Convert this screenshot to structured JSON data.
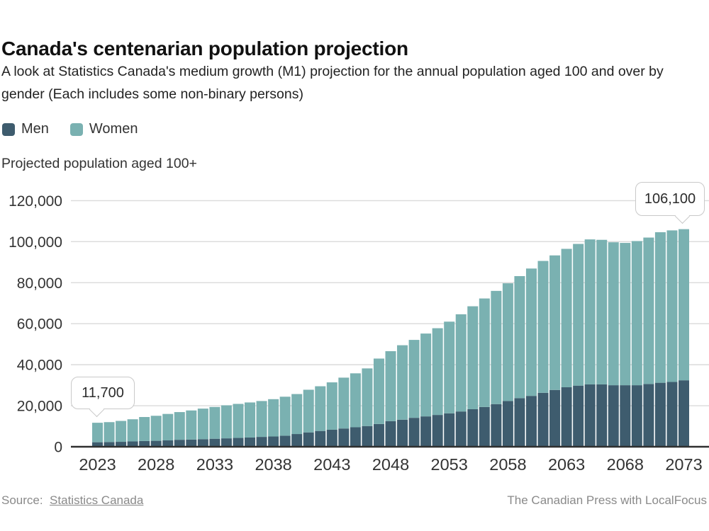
{
  "header": {
    "title": "Canada's centenarian population projection",
    "subtitle": "A look at Statistics Canada's medium growth (M1) projection for the annual population aged 100 and over by gender (Each includes some non-binary persons)"
  },
  "legend": [
    {
      "label": "Men",
      "color": "#3e5c6e"
    },
    {
      "label": "Women",
      "color": "#7ab1b1"
    }
  ],
  "axis_title": "Projected population aged 100+",
  "annotations": [
    {
      "text": "11,700",
      "year": 2023
    },
    {
      "text": "106,100",
      "year": 2073
    }
  ],
  "footer": {
    "source_prefix": "Source:",
    "source_link": "Statistics Canada",
    "credit": "The Canadian Press with LocalFocus"
  },
  "chart_data": {
    "type": "bar",
    "stacked": true,
    "title": "Canada's centenarian population projection",
    "ylabel": "Projected population aged 100+",
    "ylim": [
      0,
      120000
    ],
    "yticks": [
      0,
      20000,
      40000,
      60000,
      80000,
      100000,
      120000
    ],
    "xticks": [
      2023,
      2028,
      2033,
      2038,
      2043,
      2048,
      2053,
      2058,
      2063,
      2068,
      2073
    ],
    "grid": true,
    "legend_position": "top",
    "x": [
      2023,
      2024,
      2025,
      2026,
      2027,
      2028,
      2029,
      2030,
      2031,
      2032,
      2033,
      2034,
      2035,
      2036,
      2037,
      2038,
      2039,
      2040,
      2041,
      2042,
      2043,
      2044,
      2045,
      2046,
      2047,
      2048,
      2049,
      2050,
      2051,
      2052,
      2053,
      2054,
      2055,
      2056,
      2057,
      2058,
      2059,
      2060,
      2061,
      2062,
      2063,
      2064,
      2065,
      2066,
      2067,
      2068,
      2069,
      2070,
      2071,
      2072,
      2073
    ],
    "series": [
      {
        "name": "Men",
        "color": "#3e5c6e",
        "values": [
          2200,
          2300,
          2400,
          2600,
          2800,
          2900,
          3100,
          3400,
          3500,
          3700,
          3900,
          4100,
          4300,
          4500,
          4800,
          5000,
          5400,
          6200,
          7000,
          7700,
          8300,
          8900,
          9500,
          10100,
          11100,
          12500,
          13200,
          14100,
          14800,
          15500,
          16300,
          17200,
          18300,
          19400,
          20800,
          22300,
          23700,
          24800,
          26300,
          27700,
          29000,
          29800,
          30400,
          30400,
          30000,
          30000,
          30000,
          30600,
          31200,
          31600,
          32400
        ]
      },
      {
        "name": "Women",
        "color": "#7ab1b1",
        "values": [
          9500,
          9700,
          10200,
          10800,
          11700,
          12200,
          12900,
          13500,
          14200,
          14900,
          15500,
          16100,
          16600,
          17100,
          17500,
          18200,
          19000,
          19500,
          20800,
          21800,
          23100,
          24800,
          26300,
          28100,
          31900,
          34100,
          36300,
          38000,
          40400,
          42300,
          44700,
          47400,
          50200,
          52900,
          55200,
          57400,
          59500,
          62100,
          64300,
          65600,
          67500,
          69100,
          70700,
          70500,
          69700,
          69400,
          70300,
          71400,
          73400,
          73900,
          73700
        ]
      }
    ],
    "totals_note": {
      "first_bar_total": 11700,
      "last_bar_total": 106100
    }
  }
}
